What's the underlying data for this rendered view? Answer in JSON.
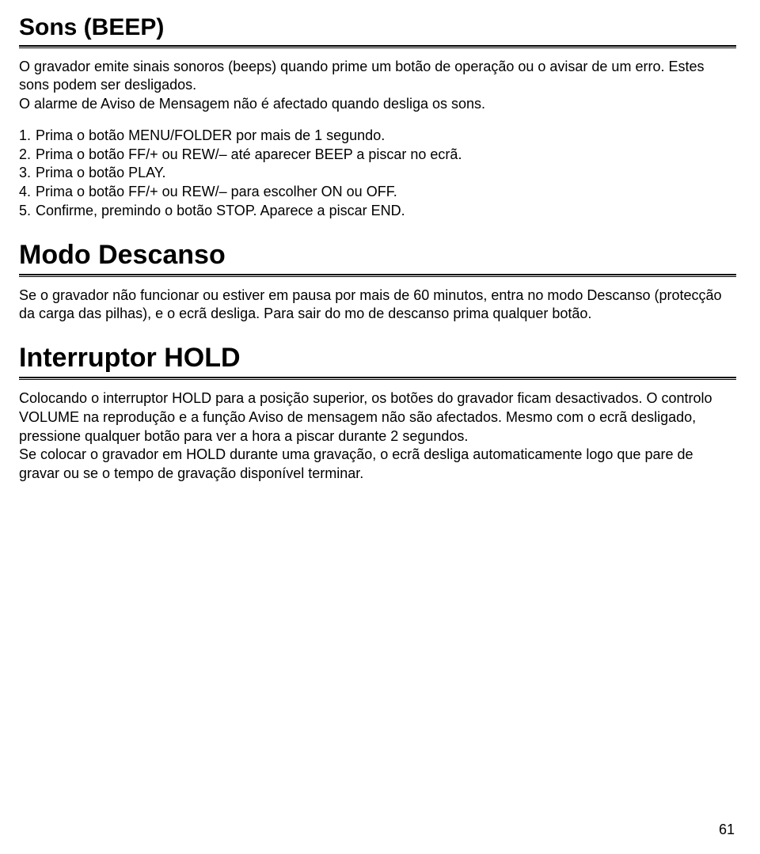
{
  "sections": {
    "sons": {
      "heading": "Sons (BEEP)",
      "heading_fontsize": 30,
      "intro": "O gravador emite sinais sonoros (beeps) quando prime um botão de operação ou o avisar de um erro. Estes sons podem ser desligados.",
      "note": "O alarme de Aviso de Mensagem não é afectado quando desliga os sons.",
      "steps": [
        {
          "n": "1.",
          "t": "Prima o botão MENU/FOLDER por mais de 1 segundo."
        },
        {
          "n": "2.",
          "t": "Prima o botão FF/+ ou REW/– até aparecer BEEP a piscar no ecrã."
        },
        {
          "n": "3.",
          "t": "Prima o botão PLAY."
        },
        {
          "n": "4.",
          "t": "Prima o botão FF/+ ou REW/– para escolher ON ou OFF."
        },
        {
          "n": "5.",
          "t": "Confirme, premindo o botão STOP. Aparece a piscar END."
        }
      ]
    },
    "descanso": {
      "heading": "Modo Descanso",
      "heading_fontsize": 34,
      "body": "Se o gravador não funcionar ou estiver em pausa por mais de 60 minutos, entra no modo Descanso (protecção da carga das pilhas), e o ecrã desliga. Para sair do mo de descanso prima qualquer botão."
    },
    "hold": {
      "heading": "Interruptor HOLD",
      "heading_fontsize": 34,
      "p1": "Colocando o interruptor HOLD para a posição superior, os botões do gravador ficam desactivados. O controlo VOLUME na reprodução e a função Aviso de mensagem não são afectados. Mesmo com o ecrã desligado, pressione qualquer botão para ver a hora a piscar durante 2 segundos.",
      "p2": "Se colocar o gravador em HOLD durante uma gravação, o ecrã desliga automaticamente logo que pare de gravar ou se o tempo de gravação disponível terminar."
    }
  },
  "page_number": "61",
  "colors": {
    "text": "#000000",
    "background": "#ffffff",
    "rule": "#000000"
  },
  "typography": {
    "body_fontsize": 18,
    "font_family": "Arial, Helvetica, sans-serif"
  }
}
